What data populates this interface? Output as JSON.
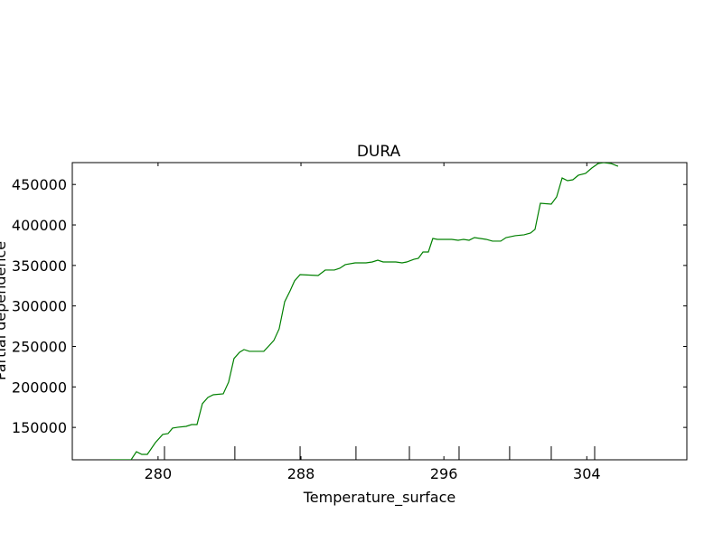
{
  "chart_data": {
    "type": "line",
    "title": "DURA",
    "x_label": "Temperature_surface",
    "y_label": "Partial dependence",
    "xlim": [
      275.2,
      309.6
    ],
    "ylim": [
      110000,
      477000
    ],
    "xticks": [
      280,
      288,
      296,
      304
    ],
    "yticks": [
      150000,
      200000,
      250000,
      300000,
      350000,
      400000,
      450000
    ],
    "deciles": [
      280.36,
      284.3,
      287.95,
      291.08,
      294.07,
      296.85,
      299.68,
      302.01,
      304.44
    ],
    "x": [
      277.32,
      278.49,
      278.79,
      279.09,
      279.4,
      279.85,
      280.26,
      280.56,
      280.81,
      281.12,
      281.57,
      281.88,
      282.18,
      282.48,
      282.79,
      283.09,
      283.65,
      283.95,
      284.25,
      284.56,
      284.81,
      285.11,
      285.92,
      286.48,
      286.78,
      287.09,
      287.39,
      287.64,
      287.95,
      288.96,
      289.36,
      289.87,
      290.17,
      290.48,
      291.03,
      291.64,
      291.99,
      292.3,
      292.6,
      293.31,
      293.66,
      293.92,
      294.32,
      294.57,
      294.83,
      295.13,
      295.38,
      295.64,
      296.44,
      296.8,
      297.1,
      297.41,
      297.71,
      298.37,
      298.72,
      299.18,
      299.48,
      299.99,
      300.49,
      300.85,
      301.1,
      301.4,
      302.01,
      302.31,
      302.62,
      302.92,
      303.22,
      303.53,
      303.93,
      304.28,
      304.64,
      304.94,
      305.35,
      305.75
    ],
    "series": [
      {
        "color": "#008000",
        "values": [
          110000,
          110000,
          120000,
          116700,
          116700,
          131200,
          141300,
          142400,
          149100,
          150200,
          151300,
          153500,
          153500,
          179200,
          187000,
          190300,
          191500,
          206000,
          235000,
          242800,
          246100,
          243900,
          243900,
          257300,
          271800,
          305300,
          318600,
          330900,
          338700,
          337600,
          344300,
          344300,
          346500,
          351000,
          353200,
          353200,
          354300,
          356500,
          354300,
          354300,
          353200,
          354300,
          357600,
          358800,
          366600,
          366600,
          383300,
          382200,
          382200,
          381100,
          382200,
          381100,
          384400,
          382200,
          380000,
          380000,
          384400,
          386700,
          387800,
          390000,
          394500,
          426800,
          425700,
          434600,
          458000,
          454700,
          455800,
          461400,
          463600,
          470300,
          475900,
          477000,
          475900,
          472500
        ]
      }
    ]
  }
}
